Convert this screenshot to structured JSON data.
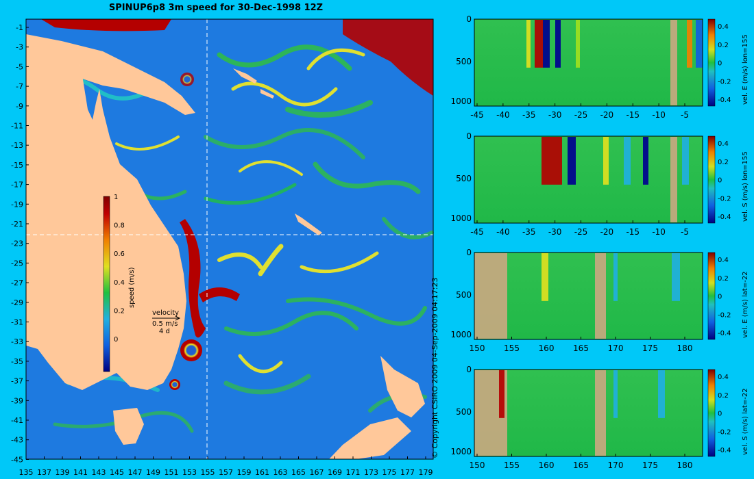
{
  "title": "SPINUP6p8 3m speed for 30-Dec-1998 12Z",
  "copyright": "© Copyright CSIRO 2009   04-Sep-2009 04:17:23",
  "map": {
    "lat_ticks": [
      "-1",
      "-3",
      "-5",
      "-7",
      "-9",
      "-11",
      "-13",
      "-15",
      "-17",
      "-19",
      "-21",
      "-23",
      "-25",
      "-27",
      "-29",
      "-31",
      "-33",
      "-35",
      "-37",
      "-39",
      "-41",
      "-43",
      "-45"
    ],
    "lon_ticks": [
      "135",
      "137",
      "139",
      "141",
      "143",
      "145",
      "147",
      "149",
      "151",
      "153",
      "155",
      "157",
      "159",
      "161",
      "163",
      "165",
      "167",
      "169",
      "171",
      "173",
      "175",
      "177",
      "179"
    ],
    "colorbar_label": "speed (m/s)",
    "colorbar_ticks": [
      "1",
      "0.8",
      "0.6",
      "0.4",
      "0.2",
      "0"
    ],
    "velocity_label": "velocity",
    "velocity_scale": "0.5 m/s",
    "velocity_time": "4 d",
    "colors": {
      "ocean": "#1e7ae0",
      "land": "#ffc89a",
      "strong": "#b40000"
    }
  },
  "sections": [
    {
      "ylabel": "vel. E (m/s) lon=155",
      "xticks": [
        "-45",
        "-40",
        "-35",
        "-30",
        "-25",
        "-20",
        "-15",
        "-10",
        "-5"
      ],
      "yticks": [
        "0",
        "500",
        "1000"
      ],
      "cticks": [
        "0.4",
        "0.2",
        "0",
        "-0.2",
        "-0.4"
      ]
    },
    {
      "ylabel": "vel. S (m/s) lon=155",
      "xticks": [
        "-45",
        "-40",
        "-35",
        "-30",
        "-25",
        "-20",
        "-15",
        "-10",
        "-5"
      ],
      "yticks": [
        "0",
        "500",
        "1000"
      ],
      "cticks": [
        "0.4",
        "0.2",
        "0",
        "-0.2",
        "-0.4"
      ]
    },
    {
      "ylabel": "vel. E (m/s) lat=-22",
      "xticks": [
        "150",
        "155",
        "160",
        "165",
        "170",
        "175",
        "180"
      ],
      "yticks": [
        "0",
        "500",
        "1000"
      ],
      "cticks": [
        "0.4",
        "0.2",
        "0",
        "-0.2",
        "-0.4"
      ]
    },
    {
      "ylabel": "vel. S (m/s) lat=-22",
      "xticks": [
        "150",
        "155",
        "160",
        "165",
        "170",
        "175",
        "180"
      ],
      "yticks": [
        "0",
        "500",
        "1000"
      ],
      "cticks": [
        "0.4",
        "0.2",
        "0",
        "-0.2",
        "-0.4"
      ]
    }
  ]
}
